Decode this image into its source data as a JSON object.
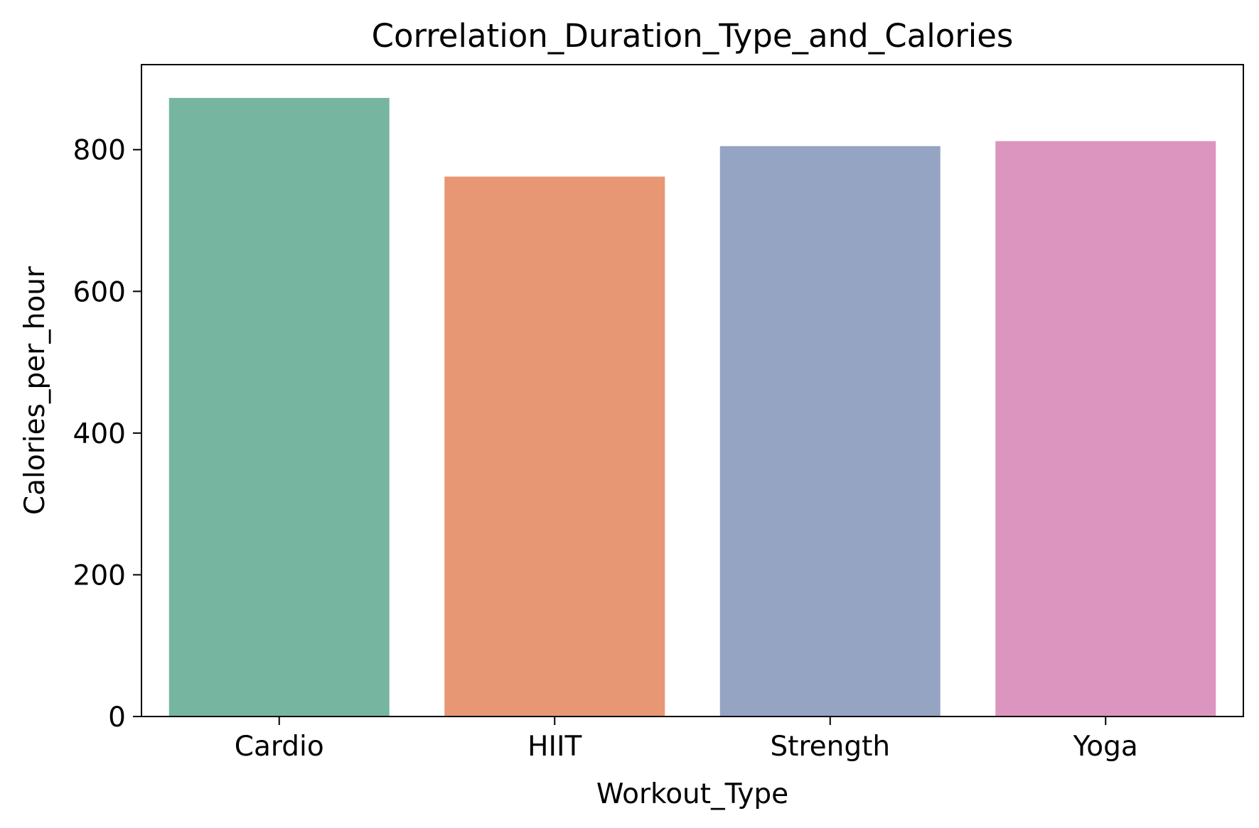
{
  "chart_data": {
    "type": "bar",
    "title": "Correlation_Duration_Type_and_Calories",
    "xlabel": "Workout_Type",
    "ylabel": "Calories_per_hour",
    "categories": [
      "Cardio",
      "HIIT",
      "Strength",
      "Yoga"
    ],
    "values": [
      873,
      762,
      805,
      812
    ],
    "colors": [
      "#76b5a0",
      "#e89775",
      "#95a4c3",
      "#dc95be"
    ],
    "ylim": [
      0,
      920
    ],
    "yticks": [
      0,
      200,
      400,
      600,
      800
    ],
    "ytick_labels": [
      "0",
      "200",
      "400",
      "600",
      "800"
    ],
    "grid": false,
    "legend": "none"
  }
}
